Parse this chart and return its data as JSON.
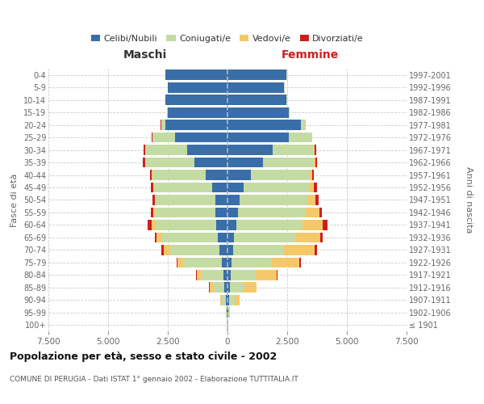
{
  "age_groups": [
    "100+",
    "95-99",
    "90-94",
    "85-89",
    "80-84",
    "75-79",
    "70-74",
    "65-69",
    "60-64",
    "55-59",
    "50-54",
    "45-49",
    "40-44",
    "35-39",
    "30-34",
    "25-29",
    "20-24",
    "15-19",
    "10-14",
    "5-9",
    "0-4"
  ],
  "birth_years": [
    "≤ 1901",
    "1902-1906",
    "1907-1911",
    "1912-1916",
    "1917-1921",
    "1922-1926",
    "1927-1931",
    "1932-1936",
    "1937-1941",
    "1942-1946",
    "1947-1951",
    "1952-1956",
    "1957-1961",
    "1962-1966",
    "1967-1971",
    "1972-1976",
    "1977-1981",
    "1982-1986",
    "1987-1991",
    "1992-1996",
    "1997-2001"
  ],
  "male": {
    "celibi": [
      10,
      25,
      60,
      130,
      180,
      250,
      350,
      420,
      480,
      490,
      510,
      640,
      900,
      1400,
      1700,
      2200,
      2600,
      2500,
      2600,
      2500,
      2600
    ],
    "coniugati": [
      8,
      30,
      180,
      480,
      920,
      1600,
      2050,
      2350,
      2550,
      2550,
      2500,
      2450,
      2250,
      2050,
      1750,
      950,
      180,
      25,
      8,
      4,
      4
    ],
    "vedovi": [
      4,
      15,
      70,
      140,
      190,
      240,
      280,
      190,
      140,
      75,
      45,
      28,
      12,
      8,
      4,
      4,
      4,
      4,
      2,
      2,
      2
    ],
    "divorziati": [
      2,
      4,
      8,
      12,
      25,
      45,
      75,
      95,
      190,
      95,
      95,
      95,
      75,
      75,
      55,
      18,
      8,
      4,
      2,
      2,
      2
    ]
  },
  "female": {
    "nubili": [
      8,
      25,
      70,
      100,
      120,
      180,
      230,
      280,
      380,
      430,
      490,
      680,
      990,
      1480,
      1880,
      2580,
      3080,
      2580,
      2480,
      2380,
      2480
    ],
    "coniugate": [
      8,
      45,
      230,
      570,
      1070,
      1650,
      2150,
      2550,
      2750,
      2850,
      2850,
      2750,
      2450,
      2150,
      1750,
      950,
      180,
      25,
      8,
      4,
      4
    ],
    "vedove": [
      4,
      25,
      190,
      530,
      870,
      1170,
      1270,
      1070,
      870,
      580,
      340,
      190,
      95,
      45,
      18,
      8,
      8,
      4,
      2,
      2,
      2
    ],
    "divorziate": [
      2,
      4,
      12,
      18,
      25,
      75,
      95,
      95,
      190,
      95,
      140,
      120,
      75,
      75,
      55,
      18,
      8,
      4,
      2,
      2,
      2
    ]
  },
  "colors": {
    "celibi": "#3a6ea8",
    "coniugati": "#c5dba4",
    "vedovi": "#f5c96a",
    "divorziati": "#cc2020"
  },
  "xlim": 7500,
  "title": "Popolazione per età, sesso e stato civile - 2002",
  "subtitle": "COMUNE DI PERUGIA - Dati ISTAT 1° gennaio 2002 - Elaborazione TUTTITALIA.IT",
  "xlabel_left": "Maschi",
  "xlabel_right": "Femmine",
  "ylabel_left": "Fasce di età",
  "ylabel_right": "Anni di nascita",
  "bg_color": "#ffffff",
  "grid_color": "#cccccc",
  "legend_labels": [
    "Celibi/Nubili",
    "Coniugati/e",
    "Vedovi/e",
    "Divorziati/e"
  ],
  "legend_colors": [
    "#3a6ea8",
    "#c5dba4",
    "#f5c96a",
    "#cc2020"
  ]
}
